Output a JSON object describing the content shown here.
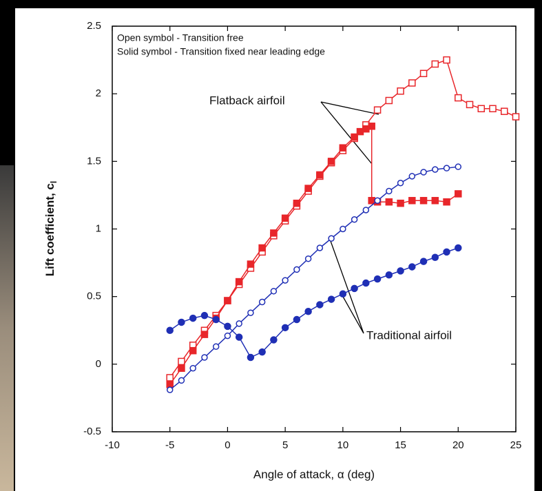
{
  "chart_data": {
    "type": "line",
    "xlabel": "Angle of attack, α (deg)",
    "ylabel": "Lift coefficient, c",
    "ylabel_subscript": "l",
    "notes": [
      "Open symbol - Transition free",
      "Solid symbol - Transition fixed near leading edge"
    ],
    "annotations": [
      "Flatback airfoil",
      "Traditional airfoil"
    ],
    "xlim": [
      -10,
      25
    ],
    "xticks": [
      -10,
      -5,
      0,
      5,
      10,
      15,
      20,
      25
    ],
    "ylim": [
      -0.5,
      2.5
    ],
    "yticks": [
      -0.5,
      0,
      0.5,
      1,
      1.5,
      2,
      2.5
    ],
    "series": [
      {
        "color": "#e8262a",
        "marker": "square",
        "filled": false,
        "x": [
          -5,
          -4,
          -3,
          -2,
          -1,
          0,
          1,
          2,
          3,
          4,
          5,
          6,
          7,
          8,
          9,
          10,
          11,
          12,
          13,
          14,
          15,
          16,
          17,
          18,
          19,
          20,
          21,
          22,
          23,
          24,
          25
        ],
        "values": [
          -0.1,
          0.02,
          0.14,
          0.25,
          0.36,
          0.47,
          0.59,
          0.71,
          0.83,
          0.95,
          1.06,
          1.17,
          1.28,
          1.39,
          1.49,
          1.58,
          1.67,
          1.77,
          1.88,
          1.95,
          2.02,
          2.08,
          2.15,
          2.22,
          2.25,
          1.97,
          1.92,
          1.89,
          1.89,
          1.87,
          1.83
        ]
      },
      {
        "color": "#e8262a",
        "marker": "square",
        "filled": true,
        "x": [
          -5,
          -4,
          -3,
          -2,
          -1,
          0,
          1,
          2,
          3,
          4,
          5,
          6,
          7,
          8,
          9,
          10,
          11,
          11.5,
          12,
          12.5,
          12.5,
          13,
          14,
          15,
          16,
          17,
          18,
          19,
          20
        ],
        "values": [
          -0.15,
          -0.03,
          0.1,
          0.22,
          0.34,
          0.47,
          0.61,
          0.74,
          0.86,
          0.97,
          1.08,
          1.19,
          1.3,
          1.4,
          1.5,
          1.6,
          1.68,
          1.72,
          1.74,
          1.76,
          1.21,
          1.2,
          1.2,
          1.19,
          1.21,
          1.21,
          1.21,
          1.2,
          1.26
        ]
      },
      {
        "color": "#1f2fb5",
        "marker": "circle",
        "filled": false,
        "x": [
          -5,
          -4,
          -3,
          -2,
          -1,
          0,
          1,
          2,
          3,
          4,
          5,
          6,
          7,
          8,
          9,
          10,
          11,
          12,
          13,
          14,
          15,
          16,
          17,
          18,
          19,
          20
        ],
        "values": [
          -0.19,
          -0.12,
          -0.03,
          0.05,
          0.13,
          0.21,
          0.3,
          0.38,
          0.46,
          0.54,
          0.62,
          0.7,
          0.78,
          0.86,
          0.93,
          1.0,
          1.07,
          1.14,
          1.21,
          1.28,
          1.34,
          1.39,
          1.42,
          1.44,
          1.45,
          1.46
        ]
      },
      {
        "color": "#1f2fb5",
        "marker": "circle",
        "filled": true,
        "x": [
          -5,
          -4,
          -3,
          -2,
          -1,
          0,
          1,
          2,
          3,
          4,
          5,
          6,
          7,
          8,
          9,
          10,
          11,
          12,
          13,
          14,
          15,
          16,
          17,
          18,
          19,
          20
        ],
        "values": [
          0.25,
          0.31,
          0.34,
          0.36,
          0.33,
          0.28,
          0.2,
          0.05,
          0.09,
          0.18,
          0.27,
          0.33,
          0.39,
          0.44,
          0.48,
          0.52,
          0.56,
          0.6,
          0.63,
          0.66,
          0.69,
          0.72,
          0.76,
          0.79,
          0.83,
          0.86
        ]
      }
    ]
  }
}
